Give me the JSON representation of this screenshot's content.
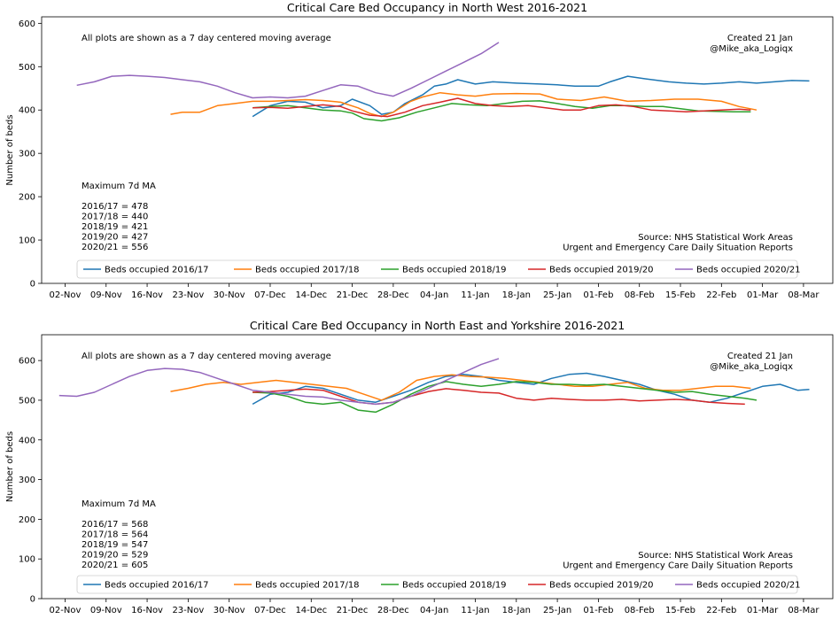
{
  "chart_data": [
    {
      "type": "line",
      "title": "Critical Care Bed Occupancy in North West 2016-2021",
      "xlabel": "",
      "ylabel": "Number of beds",
      "ylim": [
        0,
        615
      ],
      "yticks": [
        0,
        100,
        200,
        300,
        400,
        500,
        600
      ],
      "xlim": [
        "2016-10-29",
        "2017-03-13"
      ],
      "xtick_labels": [
        "02-Nov",
        "09-Nov",
        "16-Nov",
        "23-Nov",
        "30-Nov",
        "07-Dec",
        "14-Dec",
        "21-Dec",
        "28-Dec",
        "04-Jan",
        "11-Jan",
        "18-Jan",
        "25-Jan",
        "01-Feb",
        "08-Feb",
        "15-Feb",
        "22-Feb",
        "01-Mar",
        "08-Mar"
      ],
      "grid": false,
      "legend_position": "bottom",
      "note": "All plots are shown as a 7 day centered moving average",
      "credit": [
        "Created 21 Jan",
        "@Mike_aka_Logiqx"
      ],
      "source": [
        "Source: NHS Statistical Work Areas",
        "Urgent and Emergency Care Daily Situation Reports"
      ],
      "max_title": "Maximum 7d MA",
      "max_lines": [
        "2016/17 = 478",
        "2017/18 = 440",
        "2018/19 = 421",
        "2019/20 = 427",
        "2020/21 = 556"
      ],
      "series": [
        {
          "name": "Beds occupied 2016/17",
          "color": "#1f77b4",
          "x": [
            "2016-12-04",
            "2016-12-07",
            "2016-12-10",
            "2016-12-13",
            "2016-12-16",
            "2016-12-19",
            "2016-12-21",
            "2016-12-24",
            "2016-12-26",
            "2016-12-28",
            "2016-12-30",
            "2017-01-02",
            "2017-01-04",
            "2017-01-06",
            "2017-01-08",
            "2017-01-11",
            "2017-01-14",
            "2017-01-18",
            "2017-01-22",
            "2017-01-25",
            "2017-01-28",
            "2017-02-01",
            "2017-02-03",
            "2017-02-06",
            "2017-02-09",
            "2017-02-13",
            "2017-02-16",
            "2017-02-19",
            "2017-02-22",
            "2017-02-25",
            "2017-02-28",
            "2017-03-03",
            "2017-03-06",
            "2017-03-09"
          ],
          "values": [
            385,
            410,
            420,
            418,
            405,
            410,
            425,
            410,
            390,
            395,
            415,
            435,
            455,
            460,
            470,
            460,
            465,
            462,
            460,
            458,
            455,
            455,
            465,
            478,
            472,
            465,
            462,
            460,
            462,
            465,
            462,
            465,
            468,
            467
          ]
        },
        {
          "name": "Beds occupied 2017/18",
          "color": "#ff7f0e",
          "x": [
            "2016-11-20",
            "2016-11-22",
            "2016-11-25",
            "2016-11-28",
            "2016-12-01",
            "2016-12-04",
            "2016-12-07",
            "2016-12-10",
            "2016-12-13",
            "2016-12-16",
            "2016-12-19",
            "2016-12-22",
            "2016-12-24",
            "2016-12-26",
            "2016-12-28",
            "2016-12-31",
            "2017-01-02",
            "2017-01-05",
            "2017-01-08",
            "2017-01-11",
            "2017-01-14",
            "2017-01-18",
            "2017-01-22",
            "2017-01-25",
            "2017-01-29",
            "2017-02-02",
            "2017-02-06",
            "2017-02-10",
            "2017-02-14",
            "2017-02-18",
            "2017-02-22",
            "2017-02-25",
            "2017-02-28"
          ],
          "values": [
            390,
            395,
            395,
            410,
            415,
            420,
            420,
            422,
            424,
            422,
            418,
            405,
            392,
            385,
            395,
            420,
            430,
            440,
            435,
            432,
            437,
            438,
            437,
            425,
            422,
            430,
            420,
            422,
            425,
            425,
            420,
            408,
            400
          ]
        },
        {
          "name": "Beds occupied 2018/19",
          "color": "#2ca02c",
          "x": [
            "2016-12-04",
            "2016-12-07",
            "2016-12-10",
            "2016-12-13",
            "2016-12-16",
            "2016-12-19",
            "2016-12-21",
            "2016-12-23",
            "2016-12-26",
            "2016-12-29",
            "2017-01-01",
            "2017-01-04",
            "2017-01-07",
            "2017-01-10",
            "2017-01-13",
            "2017-01-16",
            "2017-01-19",
            "2017-01-22",
            "2017-01-25",
            "2017-01-28",
            "2017-01-31",
            "2017-02-03",
            "2017-02-06",
            "2017-02-09",
            "2017-02-12",
            "2017-02-15",
            "2017-02-18",
            "2017-02-21",
            "2017-02-24",
            "2017-02-27"
          ],
          "values": [
            405,
            408,
            410,
            405,
            400,
            398,
            393,
            380,
            375,
            382,
            395,
            405,
            415,
            412,
            410,
            415,
            420,
            421,
            415,
            408,
            404,
            410,
            410,
            408,
            408,
            403,
            398,
            397,
            396,
            396
          ]
        },
        {
          "name": "Beds occupied 2019/20",
          "color": "#d62728",
          "x": [
            "2016-12-04",
            "2016-12-07",
            "2016-12-10",
            "2016-12-13",
            "2016-12-16",
            "2016-12-19",
            "2016-12-21",
            "2016-12-24",
            "2016-12-27",
            "2016-12-30",
            "2017-01-02",
            "2017-01-05",
            "2017-01-08",
            "2017-01-11",
            "2017-01-14",
            "2017-01-17",
            "2017-01-20",
            "2017-01-23",
            "2017-01-26",
            "2017-01-29",
            "2017-02-01",
            "2017-02-04",
            "2017-02-07",
            "2017-02-10",
            "2017-02-13",
            "2017-02-16",
            "2017-02-19",
            "2017-02-22",
            "2017-02-25",
            "2017-02-27"
          ],
          "values": [
            405,
            406,
            404,
            408,
            412,
            408,
            398,
            388,
            385,
            395,
            410,
            418,
            427,
            415,
            410,
            408,
            410,
            405,
            400,
            400,
            410,
            412,
            408,
            400,
            398,
            396,
            398,
            400,
            402,
            400
          ]
        },
        {
          "name": "Beds occupied 2020/21",
          "color": "#9467bd",
          "x": [
            "2016-11-04",
            "2016-11-07",
            "2016-11-10",
            "2016-11-13",
            "2016-11-16",
            "2016-11-19",
            "2016-11-22",
            "2016-11-25",
            "2016-11-28",
            "2016-12-01",
            "2016-12-04",
            "2016-12-07",
            "2016-12-10",
            "2016-12-13",
            "2016-12-16",
            "2016-12-19",
            "2016-12-22",
            "2016-12-25",
            "2016-12-28",
            "2016-12-31",
            "2017-01-03",
            "2017-01-06",
            "2017-01-09",
            "2017-01-12",
            "2017-01-15"
          ],
          "values": [
            457,
            465,
            478,
            480,
            478,
            475,
            470,
            465,
            455,
            440,
            428,
            430,
            428,
            432,
            445,
            458,
            455,
            440,
            432,
            450,
            470,
            490,
            510,
            530,
            556
          ]
        }
      ]
    },
    {
      "type": "line",
      "title": "Critical Care Bed Occupancy in North East and Yorkshire 2016-2021",
      "xlabel": "",
      "ylabel": "Number of beds",
      "ylim": [
        0,
        665
      ],
      "yticks": [
        0,
        100,
        200,
        300,
        400,
        500,
        600
      ],
      "xlim": [
        "2016-10-29",
        "2017-03-13"
      ],
      "xtick_labels": [
        "02-Nov",
        "09-Nov",
        "16-Nov",
        "23-Nov",
        "30-Nov",
        "07-Dec",
        "14-Dec",
        "21-Dec",
        "28-Dec",
        "04-Jan",
        "11-Jan",
        "18-Jan",
        "25-Jan",
        "01-Feb",
        "08-Feb",
        "15-Feb",
        "22-Feb",
        "01-Mar",
        "08-Mar"
      ],
      "grid": false,
      "legend_position": "bottom",
      "note": "All plots are shown as a 7 day centered moving average",
      "credit": [
        "Created 21 Jan",
        "@Mike_aka_Logiqx"
      ],
      "source": [
        "Source: NHS Statistical Work Areas",
        "Urgent and Emergency Care Daily Situation Reports"
      ],
      "max_title": "Maximum 7d MA",
      "max_lines": [
        "2016/17 = 568",
        "2017/18 = 564",
        "2018/19 = 547",
        "2019/20 = 529",
        "2020/21 = 605"
      ],
      "series": [
        {
          "name": "Beds occupied 2016/17",
          "color": "#1f77b4",
          "x": [
            "2016-12-04",
            "2016-12-07",
            "2016-12-10",
            "2016-12-13",
            "2016-12-16",
            "2016-12-19",
            "2016-12-22",
            "2016-12-25",
            "2016-12-28",
            "2016-12-31",
            "2017-01-03",
            "2017-01-06",
            "2017-01-09",
            "2017-01-12",
            "2017-01-15",
            "2017-01-18",
            "2017-01-21",
            "2017-01-24",
            "2017-01-27",
            "2017-01-30",
            "2017-02-02",
            "2017-02-05",
            "2017-02-08",
            "2017-02-11",
            "2017-02-14",
            "2017-02-17",
            "2017-02-20",
            "2017-02-23",
            "2017-02-26",
            "2017-03-01",
            "2017-03-04",
            "2017-03-07",
            "2017-03-09"
          ],
          "values": [
            490,
            515,
            520,
            535,
            530,
            515,
            500,
            495,
            510,
            525,
            545,
            560,
            565,
            560,
            550,
            545,
            540,
            555,
            565,
            568,
            560,
            550,
            540,
            525,
            515,
            500,
            495,
            505,
            520,
            535,
            540,
            525,
            527
          ]
        },
        {
          "name": "Beds occupied 2017/18",
          "color": "#ff7f0e",
          "x": [
            "2016-11-20",
            "2016-11-23",
            "2016-11-26",
            "2016-11-29",
            "2016-12-02",
            "2016-12-05",
            "2016-12-08",
            "2016-12-11",
            "2016-12-14",
            "2016-12-17",
            "2016-12-20",
            "2016-12-23",
            "2016-12-26",
            "2016-12-29",
            "2017-01-01",
            "2017-01-04",
            "2017-01-07",
            "2017-01-10",
            "2017-01-13",
            "2017-01-16",
            "2017-01-19",
            "2017-01-22",
            "2017-01-25",
            "2017-01-28",
            "2017-01-31",
            "2017-02-03",
            "2017-02-06",
            "2017-02-09",
            "2017-02-12",
            "2017-02-15",
            "2017-02-18",
            "2017-02-21",
            "2017-02-24",
            "2017-02-27"
          ],
          "values": [
            522,
            530,
            540,
            545,
            540,
            545,
            550,
            545,
            540,
            535,
            530,
            515,
            500,
            520,
            550,
            560,
            564,
            560,
            558,
            555,
            550,
            545,
            540,
            535,
            535,
            540,
            545,
            530,
            525,
            525,
            530,
            535,
            535,
            530
          ]
        },
        {
          "name": "Beds occupied 2018/19",
          "color": "#2ca02c",
          "x": [
            "2016-12-04",
            "2016-12-07",
            "2016-12-10",
            "2016-12-13",
            "2016-12-16",
            "2016-12-19",
            "2016-12-22",
            "2016-12-25",
            "2016-12-28",
            "2016-12-31",
            "2017-01-03",
            "2017-01-06",
            "2017-01-09",
            "2017-01-12",
            "2017-01-15",
            "2017-01-18",
            "2017-01-21",
            "2017-01-24",
            "2017-01-27",
            "2017-01-30",
            "2017-02-02",
            "2017-02-05",
            "2017-02-08",
            "2017-02-11",
            "2017-02-14",
            "2017-02-17",
            "2017-02-20",
            "2017-02-23",
            "2017-02-26",
            "2017-02-28"
          ],
          "values": [
            520,
            518,
            510,
            495,
            490,
            495,
            475,
            470,
            490,
            515,
            535,
            547,
            540,
            535,
            540,
            547,
            545,
            540,
            540,
            538,
            540,
            535,
            530,
            525,
            520,
            522,
            515,
            510,
            505,
            500
          ]
        },
        {
          "name": "Beds occupied 2019/20",
          "color": "#d62728",
          "x": [
            "2016-12-04",
            "2016-12-07",
            "2016-12-10",
            "2016-12-13",
            "2016-12-16",
            "2016-12-19",
            "2016-12-22",
            "2016-12-25",
            "2016-12-28",
            "2016-12-31",
            "2017-01-03",
            "2017-01-06",
            "2017-01-09",
            "2017-01-12",
            "2017-01-15",
            "2017-01-18",
            "2017-01-21",
            "2017-01-24",
            "2017-01-27",
            "2017-01-30",
            "2017-02-02",
            "2017-02-05",
            "2017-02-08",
            "2017-02-11",
            "2017-02-14",
            "2017-02-17",
            "2017-02-20",
            "2017-02-23",
            "2017-02-26"
          ],
          "values": [
            520,
            522,
            525,
            528,
            525,
            510,
            495,
            490,
            495,
            510,
            522,
            529,
            525,
            520,
            518,
            505,
            500,
            505,
            502,
            500,
            500,
            502,
            498,
            500,
            502,
            500,
            495,
            492,
            490
          ]
        },
        {
          "name": "Beds occupied 2020/21",
          "color": "#9467bd",
          "x": [
            "2016-11-01",
            "2016-11-04",
            "2016-11-07",
            "2016-11-10",
            "2016-11-13",
            "2016-11-16",
            "2016-11-19",
            "2016-11-22",
            "2016-11-25",
            "2016-11-28",
            "2016-12-01",
            "2016-12-04",
            "2016-12-07",
            "2016-12-10",
            "2016-12-13",
            "2016-12-16",
            "2016-12-19",
            "2016-12-22",
            "2016-12-25",
            "2016-12-28",
            "2016-12-31",
            "2017-01-03",
            "2017-01-06",
            "2017-01-09",
            "2017-01-12",
            "2017-01-15"
          ],
          "values": [
            512,
            510,
            520,
            540,
            560,
            575,
            580,
            578,
            570,
            555,
            540,
            525,
            520,
            515,
            510,
            508,
            500,
            495,
            490,
            495,
            510,
            530,
            550,
            570,
            590,
            605
          ]
        }
      ]
    }
  ]
}
